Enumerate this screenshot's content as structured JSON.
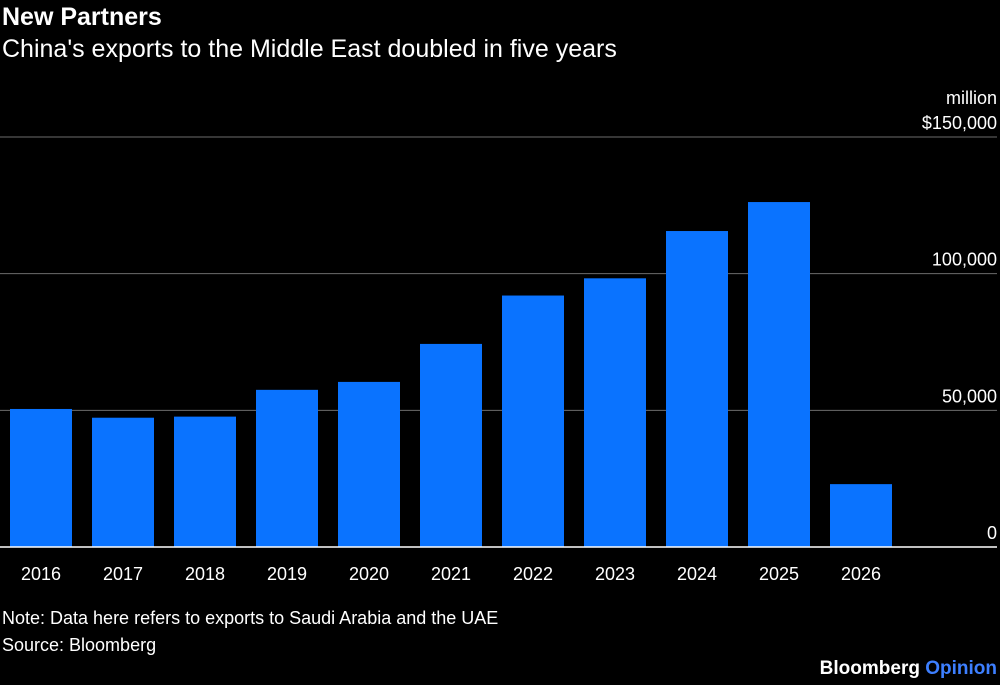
{
  "header": {
    "title": "New Partners",
    "subtitle": "China's exports to the Middle East doubled in five years"
  },
  "footer": {
    "note": "Note: Data here refers to exports to Saudi Arabia and the UAE",
    "source": "Source: Bloomberg",
    "brand_main": "Bloomberg",
    "brand_sub": "Opinion"
  },
  "colors": {
    "bar": "#0a73ff",
    "grid": "#6b6b6b",
    "background": "#000000",
    "text": "#ffffff",
    "brand_accent": "#3d7fff"
  },
  "chart_data": {
    "type": "bar",
    "title": "New Partners",
    "subtitle": "China's exports to the Middle East doubled in five years",
    "categories": [
      "2016",
      "2017",
      "2018",
      "2019",
      "2020",
      "2021",
      "2022",
      "2023",
      "2024",
      "2025",
      "2026"
    ],
    "values": [
      50500,
      47300,
      47700,
      57500,
      60400,
      74300,
      92000,
      98300,
      115600,
      126200,
      23000
    ],
    "ylabel": "million",
    "ylim": [
      0,
      150000
    ],
    "yticks": [
      0,
      50000,
      100000,
      150000
    ],
    "ytick_labels": [
      "0",
      "50,000",
      "100,000",
      "$150,000"
    ],
    "grid": true,
    "axis_position": "right"
  }
}
